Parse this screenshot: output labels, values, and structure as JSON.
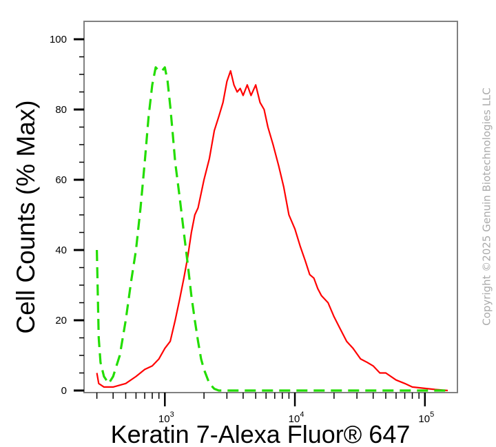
{
  "chart_data": {
    "type": "line",
    "xlabel": "Keratin 7-Alexa Fluor® 647",
    "ylabel": "Cell Counts (% Max)",
    "x_scale": "log",
    "xlim": [
      300,
      150000
    ],
    "ylim": [
      0,
      105
    ],
    "y_ticks": [
      {
        "value": 0,
        "label": "0"
      },
      {
        "value": 20,
        "label": "20"
      },
      {
        "value": 40,
        "label": "40"
      },
      {
        "value": 60,
        "label": "60"
      },
      {
        "value": 80,
        "label": "80"
      },
      {
        "value": 100,
        "label": "100"
      }
    ],
    "x_ticks": [
      {
        "value": 1000,
        "base": "10",
        "exp": "3"
      },
      {
        "value": 10000,
        "base": "10",
        "exp": "4"
      },
      {
        "value": 100000,
        "base": "10",
        "exp": "5"
      }
    ],
    "series": [
      {
        "color": "#ff0000",
        "dash": "solid",
        "x": [
          300,
          310,
          340,
          400,
          500,
          600,
          700,
          800,
          900,
          1000,
          1100,
          1200,
          1300,
          1400,
          1500,
          1600,
          1700,
          1800,
          2000,
          2200,
          2400,
          2600,
          2800,
          3000,
          3200,
          3400,
          3600,
          3800,
          4000,
          4300,
          4600,
          5000,
          5400,
          5800,
          6200,
          6800,
          7500,
          8200,
          9000,
          10000,
          11000,
          12000,
          13000,
          14000,
          15000,
          16000,
          18000,
          20000,
          22000,
          25000,
          28000,
          32000,
          36000,
          40000,
          45000,
          50000,
          60000,
          70000,
          80000,
          100000,
          120000,
          150000
        ],
        "y": [
          5,
          2,
          1,
          1,
          2,
          4,
          6,
          7,
          9,
          12,
          14,
          20,
          26,
          32,
          38,
          45,
          50,
          52,
          60,
          66,
          74,
          78,
          82,
          88,
          91,
          87,
          85,
          86,
          84,
          87,
          84,
          87,
          82,
          80,
          75,
          70,
          64,
          58,
          50,
          46,
          41,
          37,
          33,
          32,
          29,
          27,
          25,
          21,
          18,
          14,
          12,
          9,
          8,
          7,
          5,
          5,
          3,
          2,
          1,
          0.6,
          0.3,
          0
        ]
      },
      {
        "color": "#22dd00",
        "dash": "dashed",
        "x": [
          300,
          310,
          320,
          340,
          370,
          400,
          450,
          500,
          550,
          600,
          650,
          700,
          750,
          800,
          850,
          900,
          950,
          1000,
          1050,
          1100,
          1150,
          1200,
          1300,
          1400,
          1500,
          1600,
          1700,
          1800,
          1900,
          2000,
          2200,
          2400,
          2600,
          3000,
          5000,
          20000,
          150000
        ],
        "y": [
          40,
          15,
          8,
          4,
          2,
          4,
          10,
          20,
          31,
          40,
          52,
          65,
          78,
          87,
          92,
          91,
          91,
          92,
          88,
          81,
          73,
          65,
          55,
          45,
          36,
          27,
          20,
          14,
          9,
          6,
          2,
          0.5,
          0,
          0,
          0,
          0,
          0
        ]
      }
    ]
  },
  "watermark": "Copyright ©2025 Genuin Biotechnologies LLC"
}
